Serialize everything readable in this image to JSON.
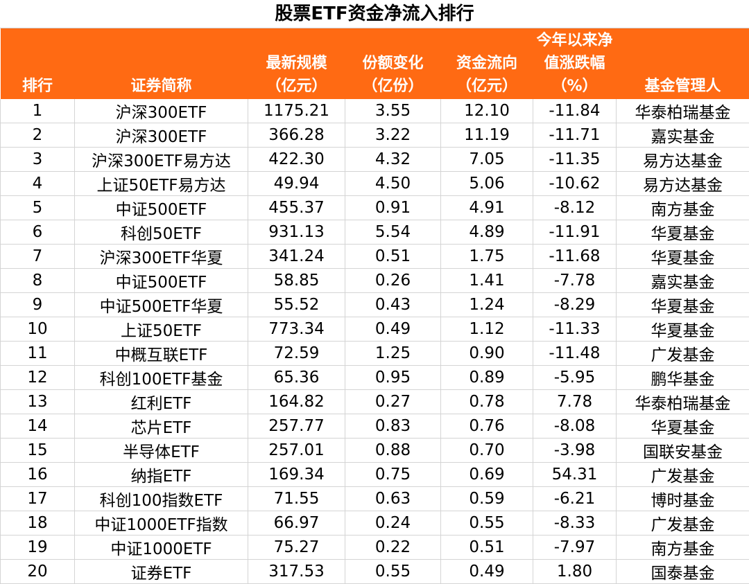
{
  "title": "股票ETF资金净流入排行",
  "headers": [
    [
      "排行"
    ],
    [
      "证券简称"
    ],
    [
      "最新规模",
      "（亿元）"
    ],
    [
      "份额变化",
      "（亿份）"
    ],
    [
      "资金流向",
      "（亿元）"
    ],
    [
      "今年以来净",
      "值涨跌幅",
      "（%）"
    ],
    [
      "基金管理人"
    ]
  ],
  "rows": [
    [
      "1",
      "沪深300ETF",
      "1175.21",
      "3.55",
      "12.10",
      "-11.84",
      "华泰柏瑞基金"
    ],
    [
      "2",
      "沪深300ETF",
      "366.28",
      "3.22",
      "11.19",
      "-11.71",
      "嘉实基金"
    ],
    [
      "3",
      "沪深300ETF易方达",
      "422.30",
      "4.32",
      "7.05",
      "-11.35",
      "易方达基金"
    ],
    [
      "4",
      "上证50ETF易方达",
      "49.94",
      "4.50",
      "5.06",
      "-10.62",
      "易方达基金"
    ],
    [
      "5",
      "中证500ETF",
      "455.37",
      "0.91",
      "4.91",
      "-8.12",
      "南方基金"
    ],
    [
      "6",
      "科创50ETF",
      "931.13",
      "5.54",
      "4.89",
      "-11.91",
      "华夏基金"
    ],
    [
      "7",
      "沪深300ETF华夏",
      "341.24",
      "0.51",
      "1.75",
      "-11.68",
      "华夏基金"
    ],
    [
      "8",
      "中证500ETF",
      "58.85",
      "0.26",
      "1.41",
      "-7.78",
      "嘉实基金"
    ],
    [
      "9",
      "中证500ETF华夏",
      "55.52",
      "0.43",
      "1.24",
      "-8.29",
      "华夏基金"
    ],
    [
      "10",
      "上证50ETF",
      "773.34",
      "0.49",
      "1.12",
      "-11.33",
      "华夏基金"
    ],
    [
      "11",
      "中概互联ETF",
      "72.59",
      "1.25",
      "0.90",
      "-11.48",
      "广发基金"
    ],
    [
      "12",
      "科创100ETF基金",
      "65.36",
      "0.95",
      "0.89",
      "-5.95",
      "鹏华基金"
    ],
    [
      "13",
      "红利ETF",
      "164.82",
      "0.27",
      "0.78",
      "7.78",
      "华泰柏瑞基金"
    ],
    [
      "14",
      "芯片ETF",
      "257.77",
      "0.83",
      "0.76",
      "-8.08",
      "华夏基金"
    ],
    [
      "15",
      "半导体ETF",
      "257.01",
      "0.88",
      "0.70",
      "-3.98",
      "国联安基金"
    ],
    [
      "16",
      "纳指ETF",
      "169.34",
      "0.75",
      "0.69",
      "54.31",
      "广发基金"
    ],
    [
      "17",
      "科创100指数ETF",
      "71.55",
      "0.63",
      "0.59",
      "-6.21",
      "博时基金"
    ],
    [
      "18",
      "中证1000ETF指数",
      "66.97",
      "0.24",
      "0.55",
      "-8.33",
      "广发基金"
    ],
    [
      "19",
      "中证1000ETF",
      "75.27",
      "0.22",
      "0.51",
      "-7.97",
      "南方基金"
    ],
    [
      "20",
      "证券ETF",
      "317.53",
      "0.55",
      "0.49",
      "1.80",
      "国泰基金"
    ]
  ],
  "colors": {
    "header_bg": "#ff6a13",
    "header_text": "#ffffff",
    "grid": "#d4d4d4"
  }
}
